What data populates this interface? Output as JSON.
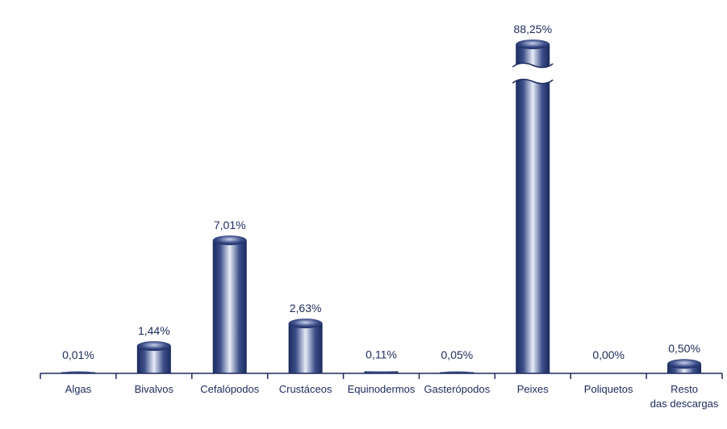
{
  "chart_data": {
    "type": "bar",
    "title": "",
    "xlabel": "",
    "ylabel": "",
    "categories": [
      "Algas",
      "Bivalvos",
      "Cefalópodos",
      "Crustáceos",
      "Equinodermos",
      "Gasterópodos",
      "Peixes",
      "Poliquetos",
      "Resto das descargas"
    ],
    "category_lines": [
      [
        "Algas"
      ],
      [
        "Bivalvos"
      ],
      [
        "Cefalópodos"
      ],
      [
        "Crustáceos"
      ],
      [
        "Equinodermos"
      ],
      [
        "Gasterópodos"
      ],
      [
        "Peixes"
      ],
      [
        "Poliquetos"
      ],
      [
        "Resto",
        "das descargas"
      ]
    ],
    "values": [
      0.01,
      1.44,
      7.01,
      2.63,
      0.11,
      0.05,
      88.25,
      0.0,
      0.5
    ],
    "value_labels": [
      "0,01%",
      "1,44%",
      "7,01%",
      "2,63%",
      "0,11%",
      "0,05%",
      "88,25%",
      "0,00%",
      "0,50%"
    ],
    "axis_break": {
      "series_index": 6
    },
    "grid": false,
    "legend": "none",
    "colors": {
      "bar_dark": "#1a2a5e",
      "bar_mid": "#3d4f8a",
      "bar_light": "#e8ecf8",
      "axis": "#1c2a5a",
      "text": "#1c2a5a"
    }
  }
}
